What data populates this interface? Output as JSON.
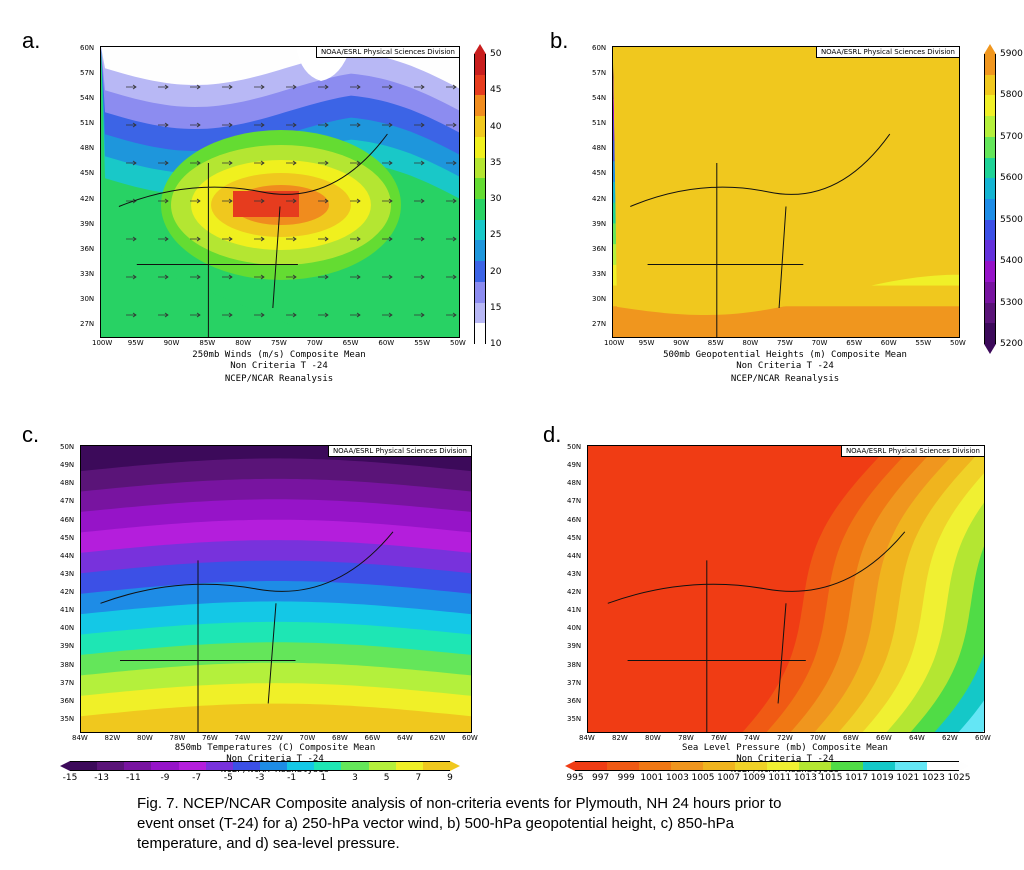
{
  "panels": [
    {
      "letter": "a.",
      "credit": "NOAA/ESRL Physical Sciences Division",
      "caption_lines": [
        "250mb Winds (m/s)   Composite Mean",
        "Non Criteria T -24",
        "NCEP/NCAR Reanalysis"
      ],
      "lat_labels": [
        "60N",
        "57N",
        "54N",
        "51N",
        "48N",
        "45N",
        "42N",
        "39N",
        "36N",
        "33N",
        "30N",
        "27N"
      ],
      "lon_labels": [
        "100W",
        "95W",
        "90W",
        "85W",
        "80W",
        "75W",
        "70W",
        "65W",
        "60W",
        "55W",
        "50W"
      ],
      "colorbar_labels": [
        "50",
        "45",
        "40",
        "35",
        "30",
        "25",
        "20",
        "15",
        "10"
      ],
      "colors": [
        "#fefefe",
        "#b8b8f5",
        "#8c8cf0",
        "#3c64e6",
        "#1e96dc",
        "#19c8c8",
        "#28d264",
        "#64dc32",
        "#b4e632",
        "#f0f01e",
        "#f0c81e",
        "#f08c1e",
        "#e63c1e",
        "#c81e1e"
      ]
    },
    {
      "letter": "b.",
      "credit": "NOAA/ESRL Physical Sciences Division",
      "caption_lines": [
        "500mb Geopotential Heights (m)   Composite Mean",
        "Non Criteria T -24",
        "NCEP/NCAR Reanalysis"
      ],
      "lat_labels": [
        "60N",
        "57N",
        "54N",
        "51N",
        "48N",
        "45N",
        "42N",
        "39N",
        "36N",
        "33N",
        "30N",
        "27N"
      ],
      "lon_labels": [
        "100W",
        "95W",
        "90W",
        "85W",
        "80W",
        "75W",
        "70W",
        "65W",
        "60W",
        "55W",
        "50W"
      ],
      "colorbar_labels": [
        "5900",
        "5800",
        "5700",
        "5600",
        "5500",
        "5400",
        "5300",
        "5200"
      ],
      "colors": [
        "#3c0a5a",
        "#5a1478",
        "#7814a0",
        "#9614c8",
        "#6432dc",
        "#3c50e6",
        "#1e8ce6",
        "#14b4d2",
        "#1ed296",
        "#64e65a",
        "#b4f03c",
        "#f0f028",
        "#f0c81e",
        "#f0961e"
      ]
    },
    {
      "letter": "c.",
      "credit": "NOAA/ESRL Physical Sciences Division",
      "caption_lines": [
        "850mb Temperatures (C)   Composite Mean",
        "Non Criteria T -24",
        "NCEP/NCAR Reanalysis"
      ],
      "lat_labels": [
        "50N",
        "49N",
        "48N",
        "47N",
        "46N",
        "45N",
        "44N",
        "43N",
        "42N",
        "41N",
        "40N",
        "39N",
        "38N",
        "37N",
        "36N",
        "35N"
      ],
      "lon_labels": [
        "84W",
        "82W",
        "80W",
        "78W",
        "76W",
        "74W",
        "72W",
        "70W",
        "68W",
        "66W",
        "64W",
        "62W",
        "60W"
      ],
      "colorbar_labels": [
        "-15",
        "-13",
        "-11",
        "-9",
        "-7",
        "-5",
        "-3",
        "-1",
        "1",
        "3",
        "5",
        "7",
        "9"
      ],
      "colors": [
        "#3c0a5a",
        "#5a1478",
        "#7814a0",
        "#9614c8",
        "#b41edc",
        "#7832dc",
        "#3c50e6",
        "#1e8ce6",
        "#14c8e6",
        "#1ee6b4",
        "#64e65a",
        "#b4f03c",
        "#f0f028",
        "#f0c81e"
      ]
    },
    {
      "letter": "d.",
      "credit": "NOAA/ESRL Physical Sciences Division",
      "caption_lines": [
        "Sea Level Pressure (mb)   Composite Mean",
        "Non Criteria T -24",
        "NCEP/NCAR Reanalysis"
      ],
      "lat_labels": [
        "50N",
        "49N",
        "48N",
        "47N",
        "46N",
        "45N",
        "44N",
        "43N",
        "42N",
        "41N",
        "40N",
        "39N",
        "38N",
        "37N",
        "36N",
        "35N"
      ],
      "lon_labels": [
        "84W",
        "82W",
        "80W",
        "78W",
        "76W",
        "74W",
        "72W",
        "70W",
        "68W",
        "66W",
        "64W",
        "62W",
        "60W"
      ],
      "colorbar_labels": [
        "995",
        "997",
        "999",
        "1001",
        "1003",
        "1005",
        "1007",
        "1009",
        "1011",
        "1013",
        "1015",
        "1017",
        "1019",
        "1021",
        "1023",
        "1025"
      ],
      "colors": [
        "#f03c14",
        "#f05a14",
        "#f07814",
        "#f0961e",
        "#f0b41e",
        "#f0d228",
        "#f0f032",
        "#b4e632",
        "#50dc46",
        "#14c8c8",
        "#64e6f5",
        "#fefefe"
      ]
    }
  ],
  "figure_caption": [
    "Fig. 7. NCEP/NCAR Composite analysis of non-criteria events for Plymouth, NH 24 hours prior to",
    "event onset (T-24) for a) 250-hPa vector wind, b) 500-hPa geopotential height, c) 850-hPa",
    "temperature, and d) sea-level pressure."
  ]
}
